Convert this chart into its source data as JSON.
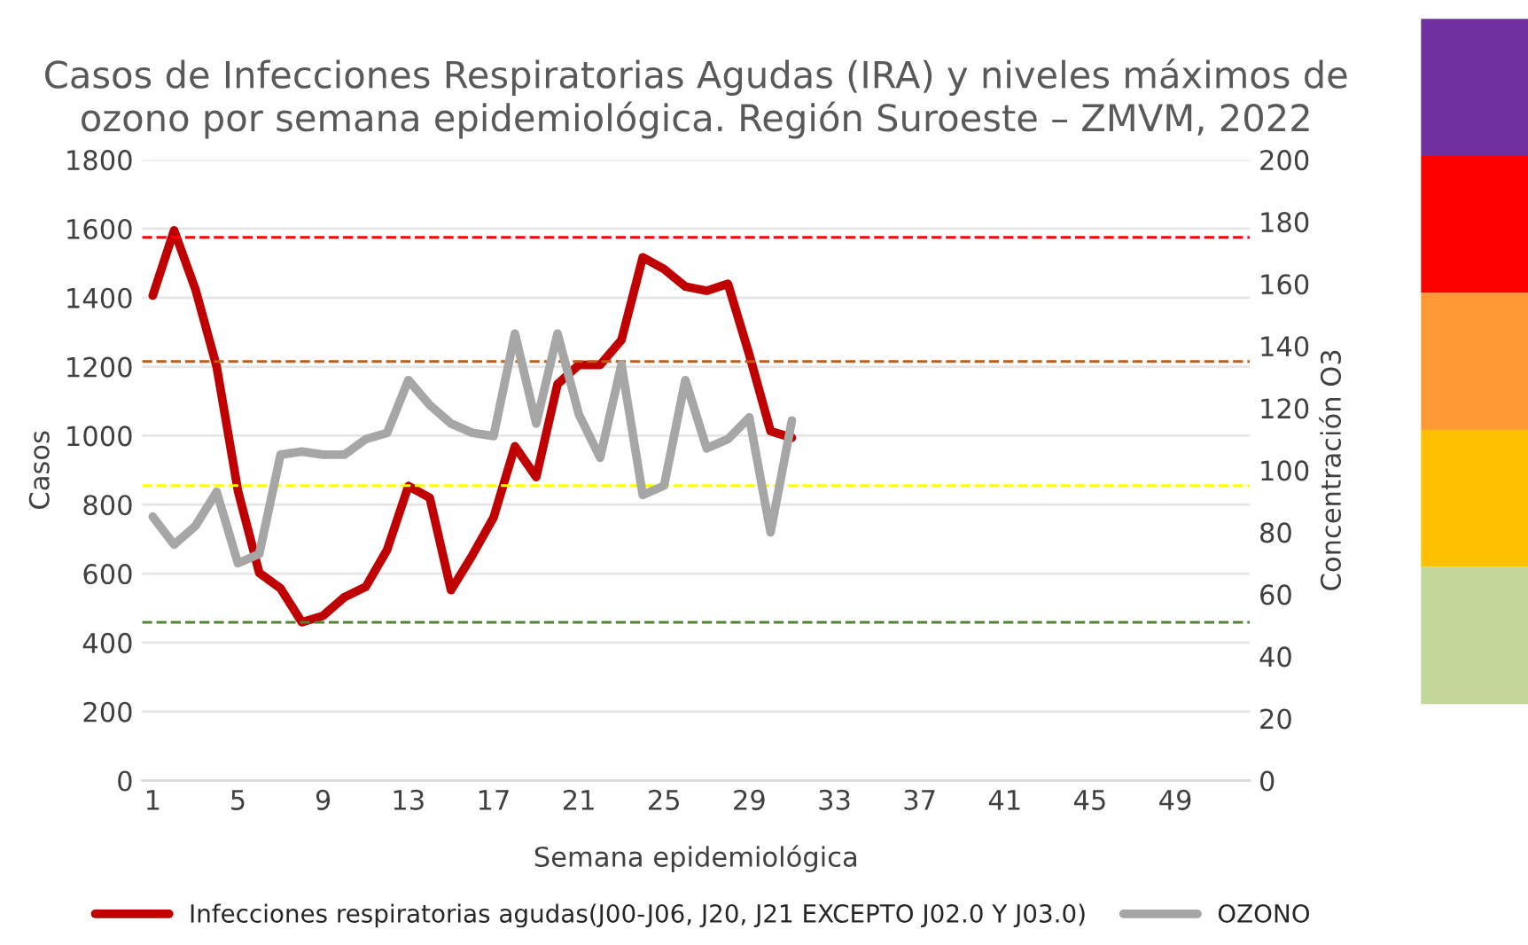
{
  "chart_data": {
    "type": "line",
    "title": "Casos de Infecciones Respiratorias Agudas (IRA) y niveles máximos de ozono por semana epidemiológica. Región Suroeste – ZMVM, 2022",
    "xlabel": "Semana epidemiológica",
    "ylabel": "Casos",
    "y2label": "Concentración O3",
    "categories": [
      "1",
      null,
      null,
      null,
      "5",
      null,
      null,
      null,
      "9",
      null,
      null,
      null,
      "13",
      null,
      null,
      null,
      "17",
      null,
      null,
      null,
      "21",
      null,
      null,
      null,
      "25",
      null,
      null,
      null,
      "29",
      null,
      null,
      null,
      "33",
      null,
      null,
      null,
      "37",
      null,
      null,
      null,
      "41",
      null,
      null,
      null,
      "45",
      null,
      null,
      null,
      "49",
      null,
      null,
      null
    ],
    "series": [
      {
        "name": "Infecciones respiratorias agudas(J00-J06, J20, J21 EXCEPTO J02.0 Y J03.0)",
        "color": "#c00000",
        "values": [
          1406,
          1595,
          1425,
          1200,
          840,
          602,
          557,
          459,
          478,
          532,
          562,
          669,
          854,
          820,
          552,
          653,
          763,
          969,
          880,
          1149,
          1205,
          1205,
          1277,
          1517,
          1483,
          1432,
          1420,
          1440,
          1235,
          1013,
          994,
          null,
          null,
          null,
          null,
          null,
          null,
          null,
          null,
          null,
          null,
          null,
          null,
          null,
          null,
          null,
          null,
          null,
          null,
          null,
          null,
          null
        ]
      },
      {
        "name": "OZONO",
        "color": "#a6a6a6",
        "axis": "y2",
        "values": [
          85,
          76,
          82,
          93,
          70,
          73,
          105,
          106,
          105,
          105,
          110,
          112,
          129,
          121,
          115,
          112,
          111,
          144,
          115,
          144,
          118,
          104,
          134,
          92,
          95,
          129,
          107,
          110,
          117,
          80,
          116,
          null,
          null,
          null,
          null,
          null,
          null,
          null,
          null,
          null,
          null,
          null,
          null,
          null,
          null,
          null,
          null,
          null,
          null,
          null,
          null,
          null
        ]
      }
    ],
    "ylim": [
      0,
      1800
    ],
    "yticks": [
      0,
      200,
      400,
      600,
      800,
      1000,
      1200,
      1400,
      1600,
      1800
    ],
    "y2lim": [
      0,
      200
    ],
    "y2ticks": [
      0,
      20,
      40,
      60,
      80,
      100,
      120,
      140,
      160,
      180,
      200
    ],
    "ref_lines": [
      {
        "axis": "y2",
        "value": 175,
        "color": "#ff0000",
        "line_style": "dashed"
      },
      {
        "axis": "y2",
        "value": 135,
        "color": "#c55a11",
        "line_style": "dashed"
      },
      {
        "axis": "y2",
        "value": 95,
        "color": "#ffff00",
        "line_style": "dashed"
      },
      {
        "axis": "y2",
        "value": 51,
        "color": "#548235",
        "line_style": "dashed"
      }
    ],
    "grid": "y",
    "legend": "bottom",
    "marker": "none",
    "line_style": "solid"
  }
}
